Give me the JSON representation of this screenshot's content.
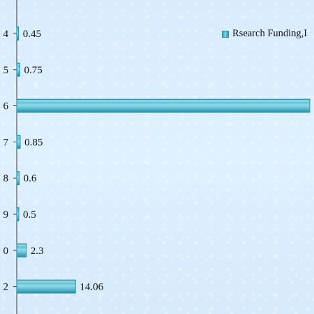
{
  "chart_data": {
    "type": "bar",
    "orientation": "horizontal",
    "categories": [
      "4",
      "5",
      "6",
      "7",
      "8",
      "9",
      "0",
      "2"
    ],
    "series": [
      {
        "name": "Rsearch Funding,I",
        "values": [
          0.45,
          0.75,
          null,
          0.85,
          0.6,
          0.5,
          2.3,
          14.06
        ],
        "value_labels": [
          "0.45",
          "0.75",
          "",
          "0.85",
          "0.6",
          "0.5",
          "2.3",
          "14.06"
        ]
      }
    ],
    "estimated_values": {
      "6": 70
    },
    "xlim": [
      0,
      70
    ],
    "legend_position": "top-right",
    "grid": false,
    "bar_color": "#3ab3cc",
    "bar_highlight": "#8fdcec",
    "bar_edge": "#1f8aa2",
    "axis_color": "#3a3a3a"
  }
}
